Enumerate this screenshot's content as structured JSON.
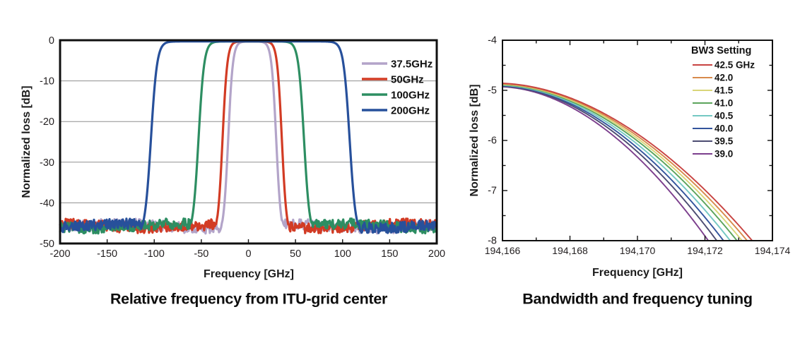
{
  "chart_data": [
    {
      "type": "line",
      "title": "Relative frequency from ITU-grid center",
      "xlabel": "Frequency [GHz]",
      "ylabel": "Normalized loss [dB]",
      "xlim": [
        -200,
        200
      ],
      "ylim": [
        -50,
        0
      ],
      "xticks": [
        -200,
        -150,
        -100,
        -50,
        0,
        50,
        100,
        150,
        200
      ],
      "xtick_labels": [
        "-200",
        "-150",
        "-100",
        "-50",
        "0",
        "50",
        "100",
        "150",
        "200"
      ],
      "yticks": [
        0,
        -10,
        -20,
        -30,
        -40,
        -50
      ],
      "ytick_labels": [
        "0",
        "-10",
        "-20",
        "-30",
        "-40",
        "-50"
      ],
      "grid": true,
      "grid_color": "#8f8f8f",
      "legend_position": "top-right-inside",
      "noise_floor_db": -45.7,
      "noise_peak_to_peak_db": 2.6,
      "series": [
        {
          "name": "37.5GHz",
          "color": "#b3a4c9",
          "shape": "flat-top bandpass",
          "passband_loss_db": -0.3,
          "passband_center_ghz": 4,
          "half_width_at_-23db_ghz": 25.5,
          "edge_softness_ghz": 5,
          "minus1db_edges_ghz": [
            -12,
            20
          ],
          "stopband_floor_db": -45.7
        },
        {
          "name": "50GHz",
          "color": "#d23b24",
          "shape": "flat-top bandpass",
          "passband_loss_db": -0.3,
          "passband_center_ghz": 4,
          "half_width_at_-23db_ghz": 31.5,
          "edge_softness_ghz": 5,
          "minus1db_edges_ghz": [
            -18,
            26
          ],
          "stopband_floor_db": -45.7
        },
        {
          "name": "100GHz",
          "color": "#2d8e62",
          "shape": "flat-top bandpass",
          "passband_loss_db": -0.3,
          "passband_center_ghz": 3,
          "half_width_at_-23db_ghz": 56,
          "edge_softness_ghz": 6,
          "minus1db_edges_ghz": [
            -42,
            48
          ],
          "stopband_floor_db": -45.7
        },
        {
          "name": "200GHz",
          "color": "#27509b",
          "shape": "flat-top bandpass",
          "passband_loss_db": -0.3,
          "passband_center_ghz": 2,
          "half_width_at_-23db_ghz": 105.5,
          "edge_softness_ghz": 6.5,
          "minus1db_edges_ghz": [
            -91,
            95
          ],
          "stopband_floor_db": -45.7
        }
      ]
    },
    {
      "type": "line",
      "title": "Bandwidth and frequency tuning",
      "xlabel": "Frequency [GHz]",
      "ylabel": "Normalized loss [dB]",
      "legend_title": "BW3 Setting",
      "xlim": [
        194166,
        194174
      ],
      "ylim": [
        -8,
        -4
      ],
      "xticks": [
        194166,
        194168,
        194170,
        194172,
        194174
      ],
      "xtick_labels": [
        "194,166",
        "194,168",
        "194,170",
        "194,172",
        "194,174"
      ],
      "x_minor_step": 1,
      "yticks": [
        -4,
        -5,
        -6,
        -7,
        -8
      ],
      "ytick_labels": [
        "-4",
        "-5",
        "-6",
        "-7",
        "-8"
      ],
      "y_minor_step": 0.5,
      "grid": false,
      "rolloff_exponent": 1.9,
      "initial_slope_db_per_ghz": 0.02,
      "series": [
        {
          "name": "42.5 GHz",
          "color": "#c84341",
          "y_at_194166_db": -4.86,
          "x_at_minus8db_ghz": 194173.4
        },
        {
          "name": "42.0",
          "color": "#d88a4c",
          "y_at_194166_db": -4.87,
          "x_at_minus8db_ghz": 194173.25
        },
        {
          "name": "41.5",
          "color": "#d9d578",
          "y_at_194166_db": -4.88,
          "x_at_minus8db_ghz": 194173.1
        },
        {
          "name": "41.0",
          "color": "#5ba45b",
          "y_at_194166_db": -4.89,
          "x_at_minus8db_ghz": 194172.95
        },
        {
          "name": "40.5",
          "color": "#74c8c3",
          "y_at_194166_db": -4.9,
          "x_at_minus8db_ghz": 194172.75
        },
        {
          "name": "40.0",
          "color": "#33549c",
          "y_at_194166_db": -4.91,
          "x_at_minus8db_ghz": 194172.55
        },
        {
          "name": "39.5",
          "color": "#4c4c72",
          "y_at_194166_db": -4.92,
          "x_at_minus8db_ghz": 194172.35
        },
        {
          "name": "39.0",
          "color": "#7c3f8d",
          "y_at_194166_db": -4.93,
          "x_at_minus8db_ghz": 194172.1
        }
      ]
    }
  ]
}
